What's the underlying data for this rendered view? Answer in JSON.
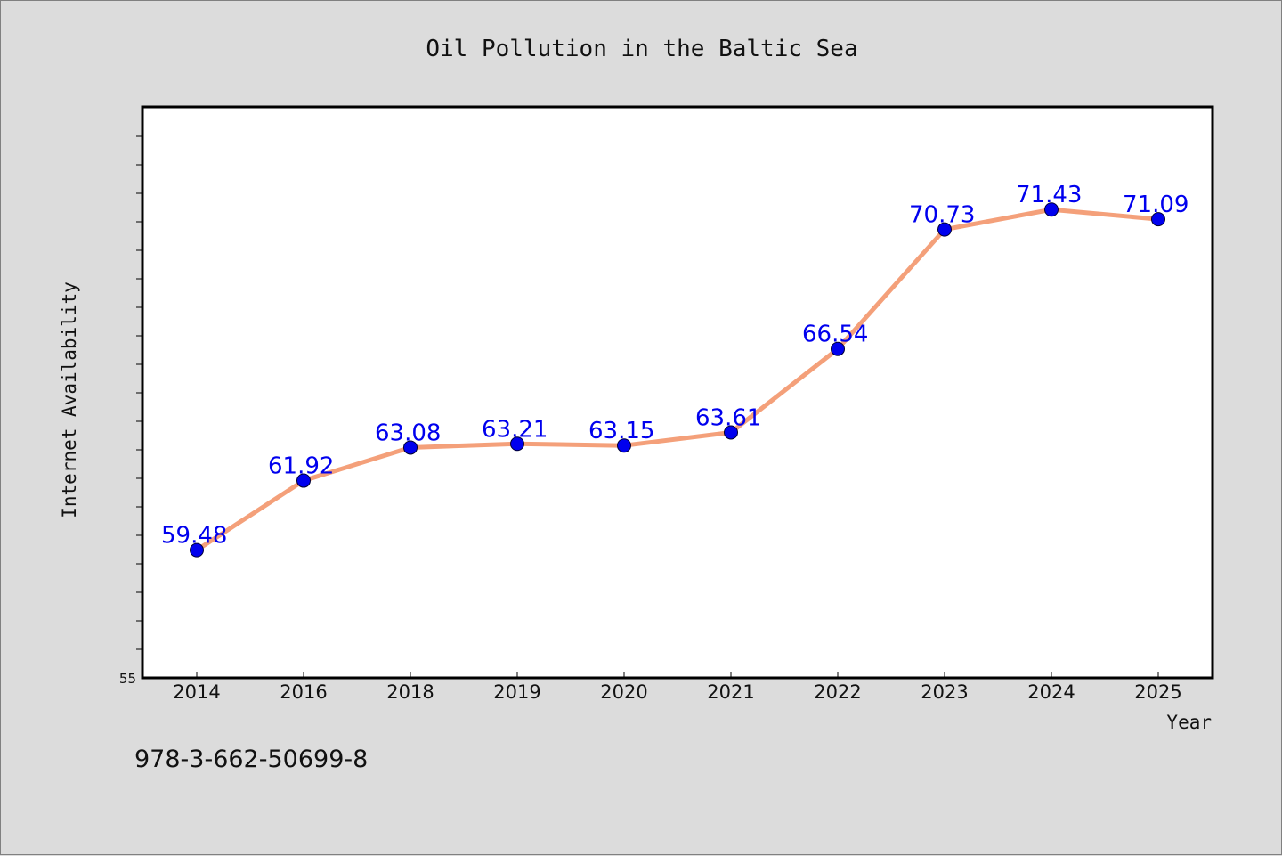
{
  "chart_data": {
    "type": "line",
    "title": "Oil Pollution in the Baltic Sea",
    "xlabel": "Year",
    "ylabel": "Internet Availability",
    "categories": [
      "2014",
      "2016",
      "2018",
      "2019",
      "2020",
      "2021",
      "2022",
      "2023",
      "2024",
      "2025"
    ],
    "series": [
      {
        "values": [
          59.48,
          61.92,
          63.08,
          63.21,
          63.15,
          63.61,
          66.54,
          70.73,
          71.43,
          71.09
        ],
        "line_color": "#f4a07a",
        "marker_color": "#0000ee",
        "label_color": "#0000ee"
      }
    ],
    "ylim": [
      55,
      75
    ],
    "y_tick_labels": [
      "55"
    ],
    "grid": false,
    "legend": "none"
  },
  "footer_code": "978-3-662-50699-8"
}
